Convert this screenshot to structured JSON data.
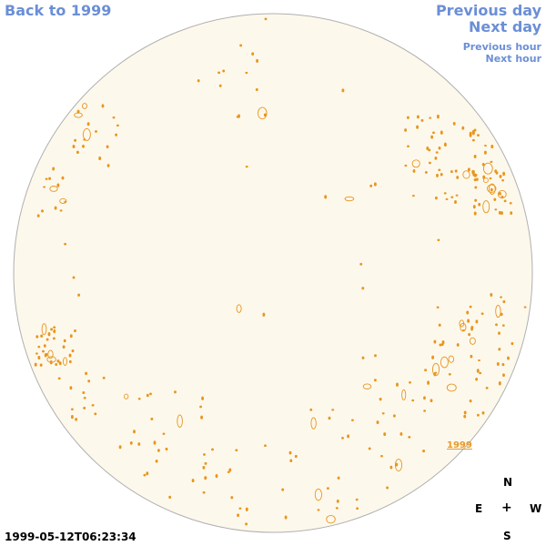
{
  "nav": {
    "back_label": "Back to 1999",
    "previous_day_label": "Previous day",
    "next_day_label": "Next day",
    "previous_hour_label": "Previous hour",
    "next_hour_label": "Next hour"
  },
  "disk": {
    "fill_color": "#fdf8ec",
    "border_color": "#b0b0b0",
    "contour_color": "#e8961e"
  },
  "compass": {
    "north": "N",
    "east": "E",
    "center": "+",
    "west": "W",
    "south": "S"
  },
  "timestamp": "1999-05-12T06:23:34",
  "year_label": "1999"
}
